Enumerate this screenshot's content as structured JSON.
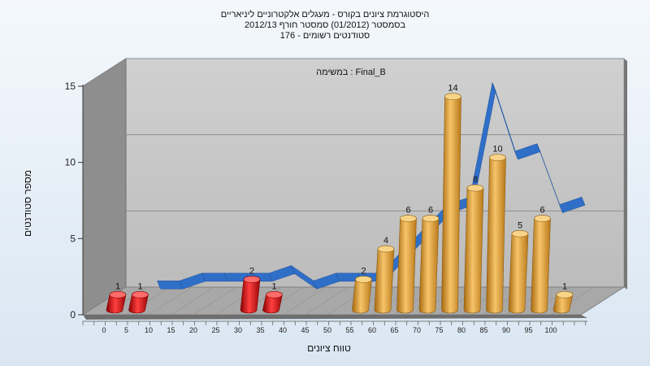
{
  "header": {
    "title_line1": "היסטוגרמת ציונים בקורס - מעגלים אלקטרוניים ליניאריים",
    "title_line2": "בסמסטר  (01/2012)  סמסטר חורף 2012/13",
    "title_line3": "176 - סטודנטים רשומים"
  },
  "colors": {
    "fail_bar": "#dd1111",
    "pass_bar": "#f0a830",
    "curve": "#2f6fc8",
    "back_wall": "#c4c4c4",
    "side_wall": "#8e8e8e",
    "floor": "#a8a8a8"
  },
  "chart_data": {
    "type": "bar",
    "title": "היסטוגרמת ציונים בקורס - מעגלים אלקטרוניים ליניאריים",
    "subtitle": "במשימה : Final_B",
    "xlabel": "טווח ציונים",
    "ylabel": "מספר סטודנטים",
    "ylim": [
      0,
      15
    ],
    "yticks": [
      0,
      5,
      10,
      15
    ],
    "xticks": [
      0,
      5,
      10,
      15,
      20,
      25,
      30,
      35,
      40,
      45,
      50,
      55,
      60,
      65,
      70,
      75,
      80,
      85,
      90,
      95,
      100
    ],
    "grid": true,
    "fail_threshold": 55,
    "x": [
      0,
      5,
      30,
      35,
      55,
      60,
      65,
      70,
      75,
      80,
      85,
      90,
      95,
      100
    ],
    "values": [
      1,
      1,
      2,
      1,
      2,
      4,
      6,
      6,
      14,
      8,
      10,
      5,
      6,
      1
    ],
    "curve": {
      "x": [
        5,
        10,
        15,
        20,
        25,
        30,
        35,
        40,
        45,
        50,
        55,
        60,
        65,
        70,
        75,
        80,
        85,
        90,
        95,
        100
      ],
      "values": [
        1,
        1,
        1.5,
        1.5,
        1.5,
        1.5,
        2,
        1,
        1.5,
        1.5,
        1.5,
        3,
        4.5,
        6,
        6.5,
        14,
        9.5,
        10,
        6,
        6.5
      ]
    }
  }
}
